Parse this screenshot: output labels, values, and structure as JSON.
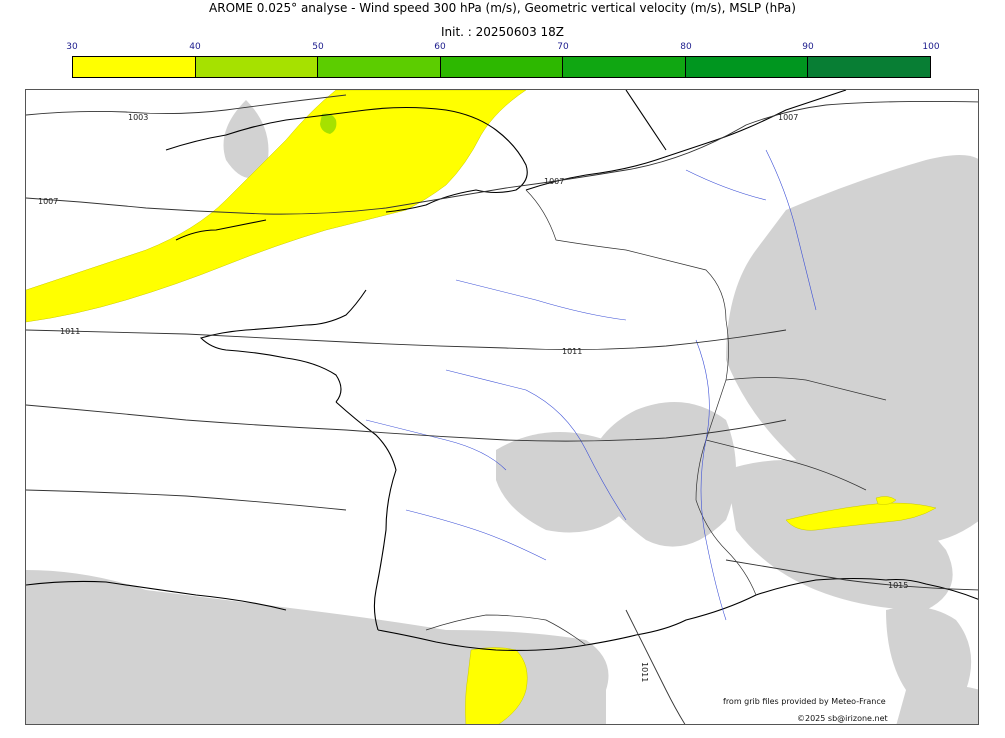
{
  "header": {
    "title": "AROME 0.025° analyse - Wind speed 300 hPa (m/s), Geometric vertical velocity (m/s), MSLP (hPa)",
    "init": "Init. : 20250603 18Z"
  },
  "colorbar": {
    "ticks": [
      "30",
      "40",
      "50",
      "60",
      "70",
      "80",
      "90",
      "100"
    ],
    "colors": [
      "#ffff00",
      "#a6e100",
      "#5ccd00",
      "#2db800",
      "#10a712",
      "#00961f",
      "#087e34",
      "#0a6b4b"
    ]
  },
  "map": {
    "isobar_labels": [
      "1003",
      "1007",
      "1007",
      "1007",
      "1011",
      "1011",
      "1011",
      "1015"
    ],
    "colors": {
      "jet": "#ffff00",
      "jet_core": "#a6e100",
      "terrain": "#d2d2d2",
      "river": "#3b4fd6",
      "coast": "#000000"
    }
  },
  "credits": {
    "source": "from grib files provided by Meteo-France",
    "copyright": "©2025 sb@irizone.net"
  }
}
